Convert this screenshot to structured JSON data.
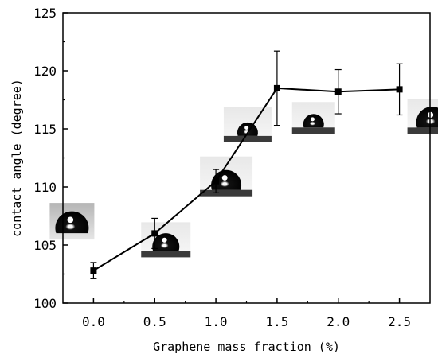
{
  "chart_data": {
    "type": "line",
    "xlabel": "Graphene mass fraction (%)",
    "ylabel": "contact angle (degree)",
    "xlim": [
      -0.25,
      2.75
    ],
    "ylim": [
      100,
      125
    ],
    "x_ticks": [
      "0.0",
      "0.5",
      "1.0",
      "1.5",
      "2.0",
      "2.5"
    ],
    "y_ticks": [
      "100",
      "105",
      "110",
      "115",
      "120",
      "125"
    ],
    "grid": false,
    "legend": "none",
    "series": [
      {
        "marker": "square",
        "color": "#000000",
        "x": [
          0.0,
          0.5,
          1.0,
          1.5,
          2.0,
          2.5
        ],
        "y": [
          102.8,
          106.0,
          110.5,
          118.5,
          118.2,
          118.4
        ],
        "error": [
          0.7,
          1.3,
          1.0,
          3.2,
          1.9,
          2.2
        ]
      }
    ],
    "annotations": [
      {
        "type": "droplet-image",
        "x": 0.0
      },
      {
        "type": "droplet-image",
        "x": 0.5
      },
      {
        "type": "droplet-image",
        "x": 1.0
      },
      {
        "type": "droplet-image",
        "x": 1.5
      },
      {
        "type": "droplet-image",
        "x": 2.0
      },
      {
        "type": "droplet-image",
        "x": 2.5
      }
    ]
  }
}
